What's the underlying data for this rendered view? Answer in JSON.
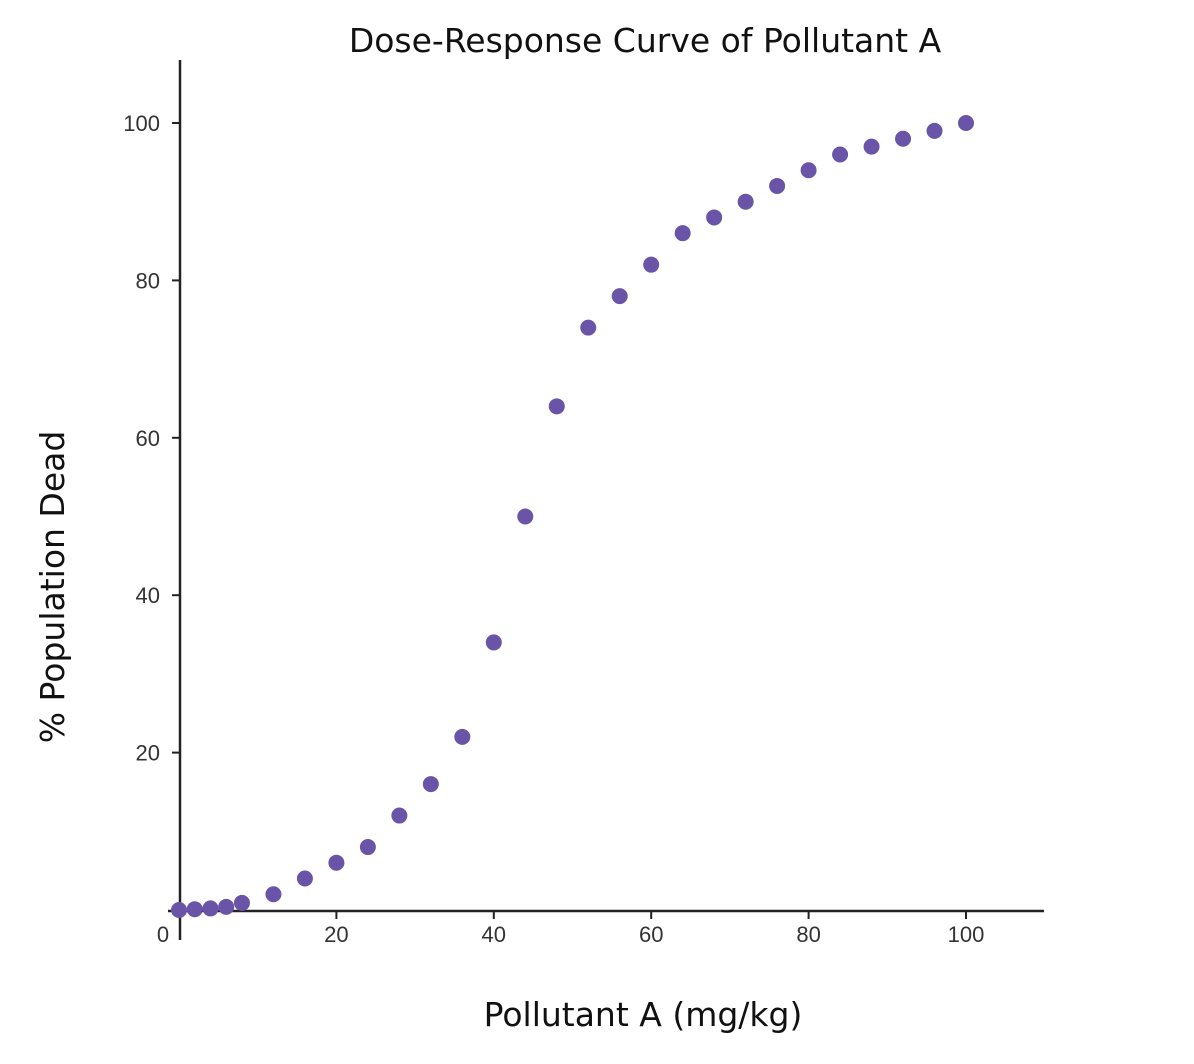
{
  "chart_data": {
    "type": "scatter",
    "title": "Dose-Response Curve of Pollutant A",
    "xlabel": "Pollutant A (mg/kg)",
    "ylabel": "% Population Dead",
    "xlim": [
      0,
      110
    ],
    "ylim": [
      0,
      108
    ],
    "x_ticks": [
      0,
      20,
      40,
      60,
      80,
      100
    ],
    "y_ticks": [
      20,
      40,
      60,
      80,
      100
    ],
    "grid": false,
    "legend": "none",
    "marker_color": "#6a54a8",
    "series": [
      {
        "x": [
          0,
          2,
          4,
          6,
          8,
          12,
          16,
          20,
          24,
          28,
          32,
          36,
          40,
          44,
          48,
          52,
          56,
          60,
          64,
          68,
          72,
          76,
          80,
          84,
          88,
          92,
          96,
          100
        ],
        "y": [
          0,
          0.1,
          0.2,
          0.4,
          0.9,
          2,
          4,
          6,
          8,
          12,
          16,
          22,
          34,
          50,
          64,
          74,
          78,
          82,
          86,
          88,
          90,
          92,
          94,
          96,
          97,
          98,
          99,
          100
        ]
      }
    ]
  }
}
